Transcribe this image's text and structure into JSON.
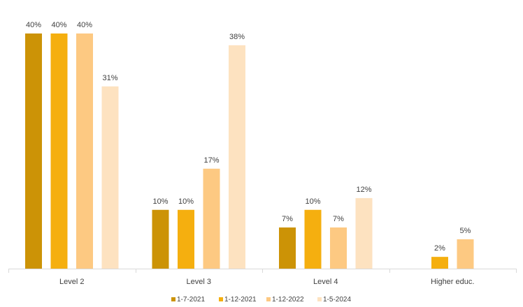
{
  "chart_data": {
    "type": "bar",
    "title": "",
    "xlabel": "",
    "ylabel": "",
    "ylim": [
      0,
      40
    ],
    "grid": false,
    "legend_position": "bottom",
    "categories": [
      "Level 2",
      "Level 3",
      "Level 4",
      "Higher educ."
    ],
    "series": [
      {
        "name": "1-7-2021",
        "color": "#CC9306",
        "values": [
          40,
          10,
          7,
          null
        ],
        "labels": [
          "40%",
          "10%",
          "7%",
          ""
        ]
      },
      {
        "name": "1-12-2021",
        "color": "#F5AF0F",
        "values": [
          40,
          10,
          10,
          2
        ],
        "labels": [
          "40%",
          "10%",
          "10%",
          "2%"
        ]
      },
      {
        "name": "1-12-2022",
        "color": "#FDC982",
        "values": [
          40,
          17,
          7,
          5
        ],
        "labels": [
          "40%",
          "17%",
          "7%",
          "5%"
        ]
      },
      {
        "name": "1-5-2024",
        "color": "#FDE2C0",
        "values": [
          31,
          38,
          12,
          null
        ],
        "labels": [
          "31%",
          "38%",
          "12%",
          ""
        ]
      }
    ]
  }
}
